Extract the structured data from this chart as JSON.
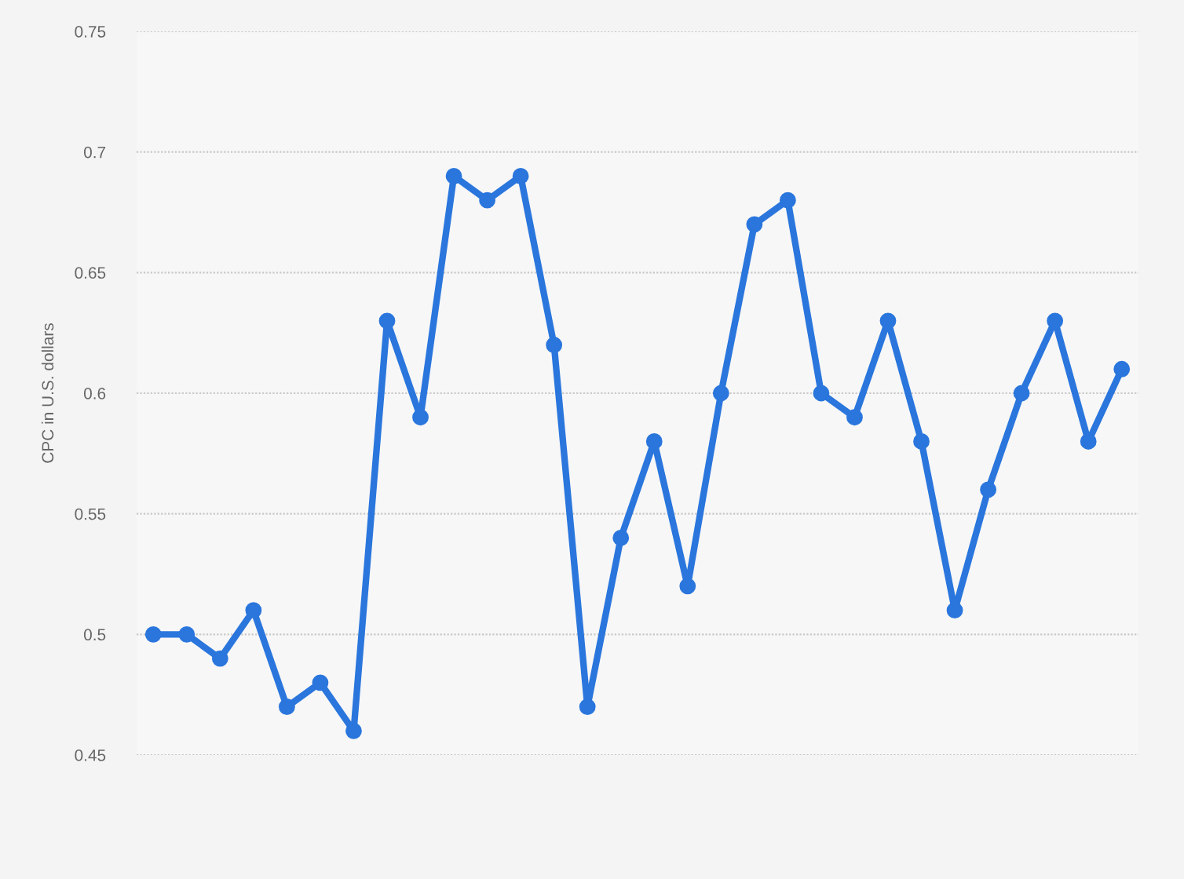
{
  "chart_data": {
    "type": "line",
    "ylabel": "CPC in U.S. dollars",
    "categories": [
      null,
      null,
      null,
      null,
      null,
      null,
      null,
      null,
      null,
      null,
      null,
      null,
      null,
      null,
      null,
      null,
      null,
      null,
      null,
      null,
      null,
      null,
      null,
      null,
      null,
      null,
      null,
      null,
      null,
      null
    ],
    "series": [
      {
        "color": "#2a76dd",
        "values": [
          0.5,
          0.5,
          0.49,
          0.51,
          0.47,
          0.48,
          0.46,
          0.63,
          0.59,
          0.69,
          0.68,
          0.69,
          0.62,
          0.47,
          0.54,
          0.58,
          0.52,
          0.6,
          0.67,
          0.68,
          0.6,
          0.59,
          0.63,
          0.58,
          0.51,
          0.56,
          0.6,
          0.63,
          0.58,
          0.61
        ]
      }
    ],
    "ylim": [
      0.45,
      0.75
    ],
    "yticks": [
      {
        "value": 0.45,
        "label": "0.45"
      },
      {
        "value": 0.5,
        "label": "0.5"
      },
      {
        "value": 0.55,
        "label": "0.55"
      },
      {
        "value": 0.6,
        "label": "0.6"
      },
      {
        "value": 0.65,
        "label": "0.65"
      },
      {
        "value": 0.7,
        "label": "0.7"
      },
      {
        "value": 0.75,
        "label": "0.75"
      }
    ],
    "grid": "y",
    "marker": "circle",
    "line_style": "solid",
    "tick_labels": "y"
  }
}
